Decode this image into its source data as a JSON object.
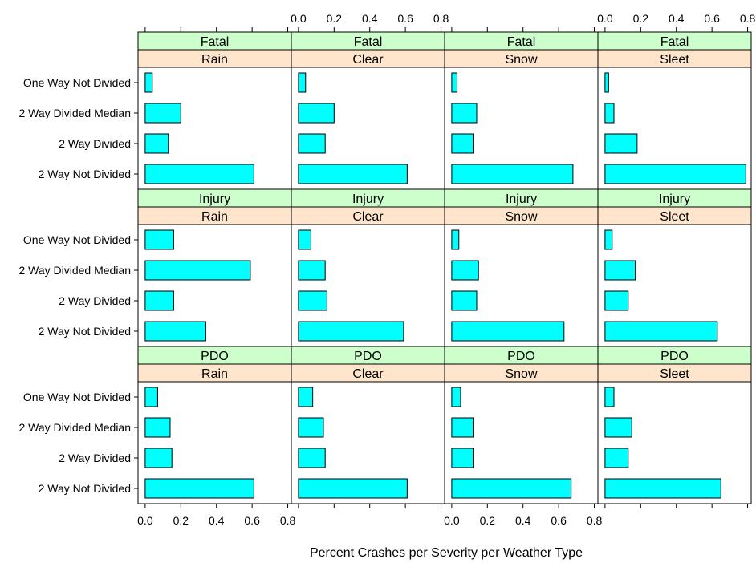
{
  "chart_data": {
    "type": "bar",
    "orientation": "horizontal",
    "layout": "trellis 4 columns x 3 rows",
    "xlabel": "Percent Crashes per Severity per Weather Type",
    "xlim": [
      -0.04,
      0.82
    ],
    "xticks": [
      0.0,
      0.2,
      0.4,
      0.6,
      0.8
    ],
    "tick_labels": [
      "0.0",
      "0.2",
      "0.4",
      "0.6",
      "0.8"
    ],
    "categories": [
      "One Way Not Divided",
      "2 Way Divided Median",
      "2 Way Divided",
      "2 Way Not Divided"
    ],
    "weather_types": [
      "Rain",
      "Clear",
      "Snow",
      "Sleet"
    ],
    "severities": [
      "Fatal",
      "Injury",
      "PDO"
    ],
    "colors": {
      "bar": "#00ffff",
      "severity_strip": "#ccffcc",
      "weather_strip": "#ffe5cc"
    },
    "panels": [
      {
        "severity": "Fatal",
        "weather": "Rain",
        "values": [
          0.04,
          0.2,
          0.13,
          0.61
        ]
      },
      {
        "severity": "Fatal",
        "weather": "Clear",
        "values": [
          0.04,
          0.2,
          0.15,
          0.61
        ]
      },
      {
        "severity": "Fatal",
        "weather": "Snow",
        "values": [
          0.03,
          0.14,
          0.12,
          0.68
        ]
      },
      {
        "severity": "Fatal",
        "weather": "Sleet",
        "values": [
          0.02,
          0.05,
          0.18,
          0.79
        ]
      },
      {
        "severity": "Injury",
        "weather": "Rain",
        "values": [
          0.16,
          0.59,
          0.16,
          0.34
        ]
      },
      {
        "severity": "Injury",
        "weather": "Clear",
        "values": [
          0.07,
          0.15,
          0.16,
          0.59
        ]
      },
      {
        "severity": "Injury",
        "weather": "Snow",
        "values": [
          0.04,
          0.15,
          0.14,
          0.63
        ]
      },
      {
        "severity": "Injury",
        "weather": "Sleet",
        "values": [
          0.04,
          0.17,
          0.13,
          0.63
        ]
      },
      {
        "severity": "PDO",
        "weather": "Rain",
        "values": [
          0.07,
          0.14,
          0.15,
          0.61
        ]
      },
      {
        "severity": "PDO",
        "weather": "Clear",
        "values": [
          0.08,
          0.14,
          0.15,
          0.61
        ]
      },
      {
        "severity": "PDO",
        "weather": "Snow",
        "values": [
          0.05,
          0.12,
          0.12,
          0.67
        ]
      },
      {
        "severity": "PDO",
        "weather": "Sleet",
        "values": [
          0.05,
          0.15,
          0.13,
          0.65
        ]
      }
    ]
  }
}
